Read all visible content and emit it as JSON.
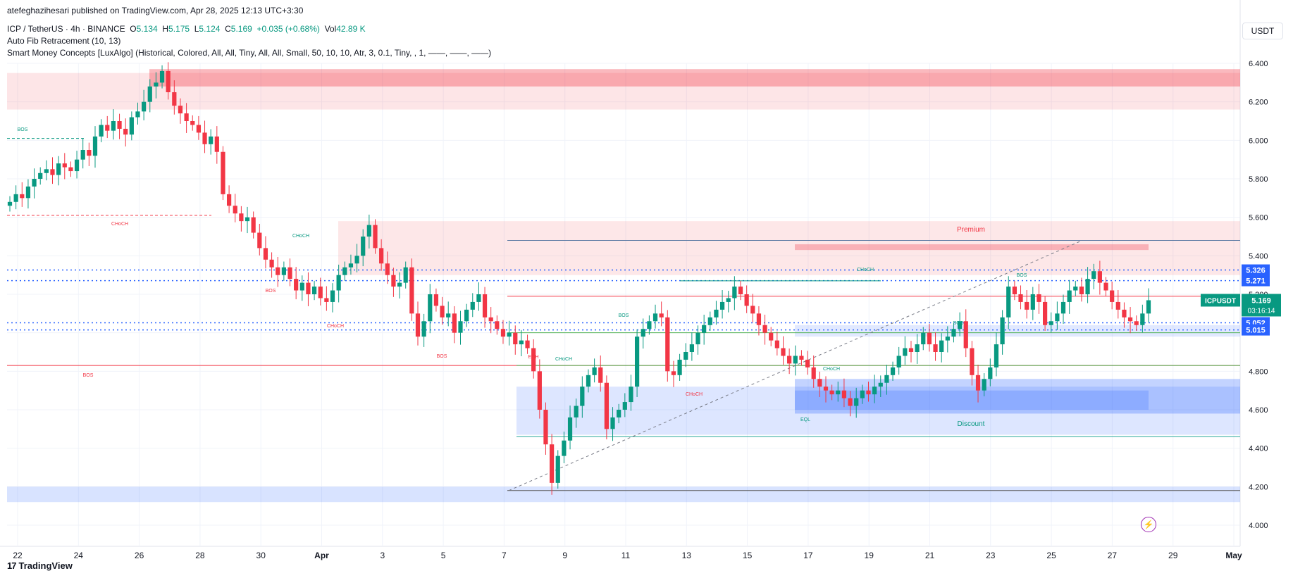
{
  "publisher": "atefeghazihesari published on TradingView.com, Apr 28, 2025 12:13 UTC+3:30",
  "header": {
    "symbol": "ICP / TetherUS · 4h · BINANCE",
    "o_label": "O",
    "o": "5.134",
    "h_label": "H",
    "h": "5.175",
    "l_label": "L",
    "l": "5.124",
    "c_label": "C",
    "c": "5.169",
    "change": "+0.035 (+0.68%)",
    "vol_label": "Vol",
    "vol": "42.89 K",
    "indicator1": "Auto Fib Retracement (10, 13)",
    "indicator2": "Smart Money Concepts [LuxAlgo] (Historical, Colored, All, All, Tiny, All, All, Small, 50, 10, 10, Atr, 3, 0.1, Tiny, , 1, ——, ——, ——)"
  },
  "currency": "USDT",
  "footer": {
    "brand": "TradingView"
  },
  "colors": {
    "up": "#089981",
    "down": "#f23645",
    "blue": "#2962ff",
    "premium": "#f23645",
    "discount": "#2962ff"
  },
  "chart_data": {
    "type": "candlestick",
    "symbol": "ICPUSDT",
    "interval": "4h",
    "ylim": [
      3.92,
      6.48
    ],
    "y_ticks": [
      "4.000",
      "4.200",
      "4.400",
      "4.600",
      "4.800",
      "5.000",
      "5.200",
      "5.400",
      "5.600",
      "5.800",
      "6.000",
      "6.200",
      "6.400"
    ],
    "x_ticks": [
      "22",
      "24",
      "26",
      "28",
      "30",
      "Apr",
      "3",
      "5",
      "7",
      "9",
      "11",
      "13",
      "15",
      "17",
      "19",
      "21",
      "23",
      "25",
      "27",
      "29",
      "May"
    ],
    "price_labels": [
      {
        "text": "5.326",
        "price": 5.326,
        "color": "#2962ff"
      },
      {
        "text": "5.271",
        "price": 5.271,
        "color": "#2962ff"
      },
      {
        "text": "5.052",
        "price": 5.052,
        "color": "#2962ff"
      },
      {
        "text": "5.015",
        "price": 5.015,
        "color": "#2962ff"
      }
    ],
    "last_price": {
      "symbol": "ICPUSDT",
      "price": "5.169",
      "countdown": "03:16:14",
      "value": 5.169
    },
    "zone_labels": [
      "Premium",
      "Discount",
      "EQL",
      "EQH"
    ],
    "structure_labels": [
      "BOS",
      "CHoCH",
      "BOS",
      "CHoCH",
      "BOS",
      "CHoCH",
      "BOS",
      "BOS",
      "CHoCH",
      "CHoCH",
      "BOS",
      "CHoCH",
      "CHoCH",
      "BOS"
    ],
    "closes": [
      5.68,
      5.72,
      5.7,
      5.76,
      5.8,
      5.83,
      5.85,
      5.82,
      5.88,
      5.86,
      5.84,
      5.9,
      5.95,
      5.92,
      6.02,
      6.08,
      6.05,
      6.1,
      6.06,
      6.03,
      6.12,
      6.15,
      6.2,
      6.28,
      6.3,
      6.36,
      6.25,
      6.18,
      6.14,
      6.1,
      6.08,
      6.04,
      5.98,
      6.02,
      5.94,
      5.72,
      5.66,
      5.62,
      5.58,
      5.6,
      5.52,
      5.44,
      5.38,
      5.34,
      5.3,
      5.34,
      5.28,
      5.22,
      5.26,
      5.2,
      5.24,
      5.18,
      5.16,
      5.22,
      5.3,
      5.34,
      5.36,
      5.4,
      5.5,
      5.56,
      5.44,
      5.36,
      5.3,
      5.24,
      5.26,
      5.34,
      5.1,
      4.98,
      5.06,
      5.2,
      5.14,
      5.08,
      5.1,
      5.0,
      5.06,
      5.12,
      5.16,
      5.2,
      5.08,
      5.06,
      5.02,
      4.98,
      5.0,
      4.94,
      4.96,
      4.92,
      4.8,
      4.6,
      4.42,
      4.22,
      4.36,
      4.44,
      4.56,
      4.62,
      4.72,
      4.78,
      4.82,
      4.74,
      4.5,
      4.56,
      4.6,
      4.64,
      4.72,
      4.98,
      5.02,
      5.06,
      5.1,
      5.08,
      4.8,
      4.78,
      4.86,
      4.9,
      4.94,
      5.0,
      5.04,
      5.08,
      5.12,
      5.16,
      5.18,
      5.24,
      5.2,
      5.14,
      5.1,
      5.04,
      5.0,
      4.96,
      4.92,
      4.88,
      4.84,
      4.88,
      4.86,
      4.82,
      4.76,
      4.72,
      4.7,
      4.68,
      4.7,
      4.66,
      4.62,
      4.66,
      4.7,
      4.68,
      4.72,
      4.74,
      4.78,
      4.82,
      4.88,
      4.92,
      4.9,
      4.94,
      5.0,
      4.94,
      4.9,
      4.96,
      4.98,
      5.02,
      5.06,
      4.92,
      4.78,
      4.7,
      4.76,
      4.82,
      4.94,
      5.08,
      5.24,
      5.2,
      5.16,
      5.12,
      5.2,
      5.16,
      5.04,
      5.06,
      5.1,
      5.16,
      5.22,
      5.24,
      5.2,
      5.28,
      5.32,
      5.26,
      5.22,
      5.16,
      5.12,
      5.08,
      5.06,
      5.04,
      5.1,
      5.169
    ]
  }
}
